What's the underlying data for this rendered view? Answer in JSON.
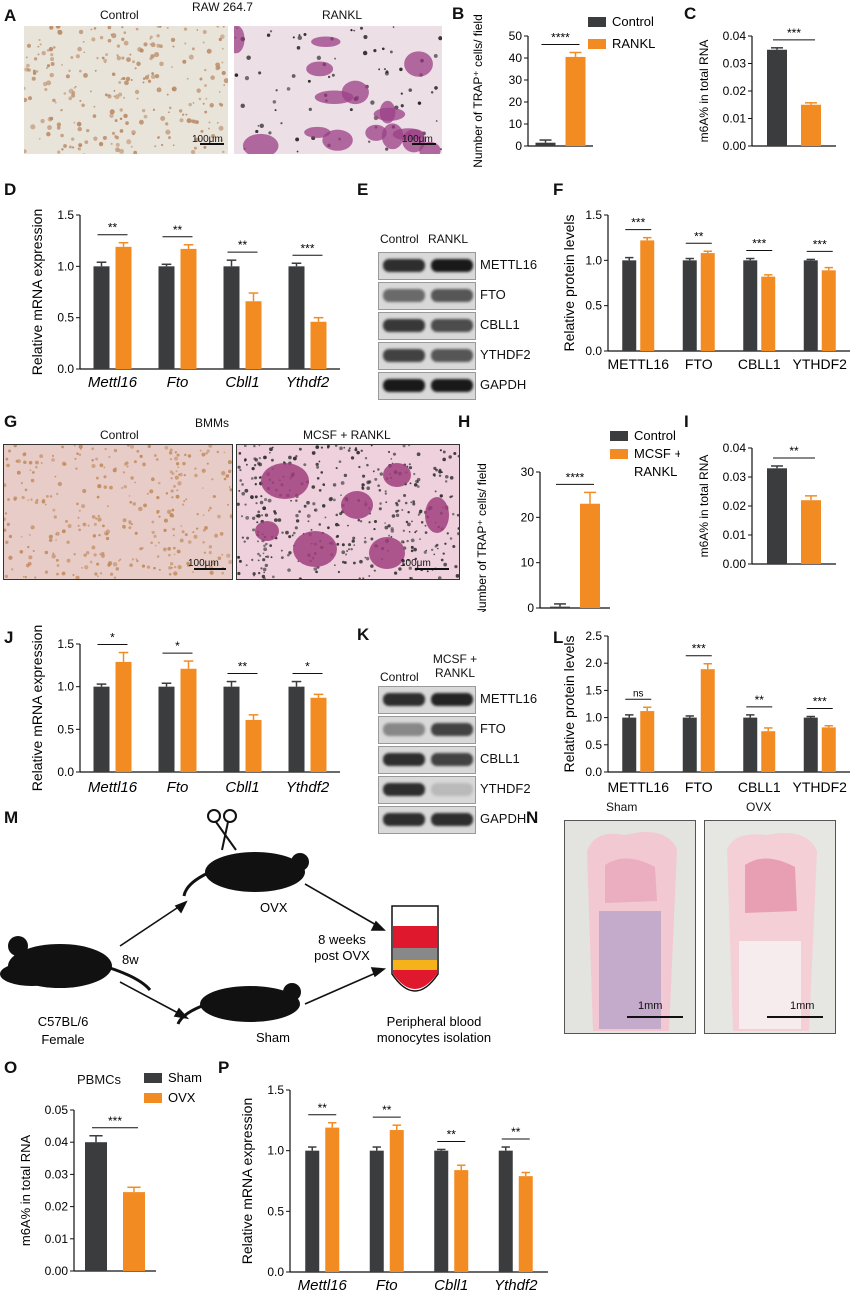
{
  "colors": {
    "control": "#3a3c3e",
    "treated": "#f28c22",
    "trap": "#b6589c"
  },
  "panel_letters": [
    "A",
    "B",
    "C",
    "D",
    "E",
    "F",
    "G",
    "H",
    "I",
    "J",
    "K",
    "L",
    "M",
    "N",
    "O",
    "P"
  ],
  "panelA": {
    "title": "RAW 264.7",
    "left_label": "Control",
    "right_label": "RANKL",
    "scale_left": "100μm",
    "scale_right": "100μm"
  },
  "panelE": {
    "lanes": [
      "Control",
      "RANKL"
    ],
    "bands": [
      "METTL16",
      "FTO",
      "CBLL1",
      "YTHDF2",
      "GAPDH"
    ]
  },
  "panelG": {
    "title": "BMMs",
    "left_label": "Control",
    "right_label": "MCSF + RANKL",
    "scale_left": "100μm",
    "scale_right": "100μm"
  },
  "panelK": {
    "lanes": [
      "Control",
      "MCSF + RANKL"
    ],
    "bands": [
      "METTL16",
      "FTO",
      "CBLL1",
      "YTHDF2",
      "GAPDH"
    ]
  },
  "panelM": {
    "mouse": "C57BL/6",
    "sex": "Female",
    "duration": "8w",
    "ovx": "OVX",
    "sham": "Sham",
    "post_line1": "8 weeks",
    "post_line2": "post OVX",
    "iso_line1": "Peripheral blood",
    "iso_line2": "monocytes isolation"
  },
  "panelN": {
    "left": "Sham",
    "right": "OVX",
    "scale_left": "1mm",
    "scale_right": "1mm"
  },
  "panelO": {
    "title": "PBMCs"
  },
  "chart_data": [
    {
      "id": "B",
      "type": "bar",
      "ylabel": "Number of TRAP⁺ cells/ field",
      "ylim": [
        0,
        50
      ],
      "yticks": [
        0,
        10,
        20,
        30,
        40,
        50
      ],
      "categories": [
        ""
      ],
      "series": [
        {
          "name": "Control",
          "values": [
            1.5
          ],
          "errors": [
            1.2
          ]
        },
        {
          "name": "RANKL",
          "values": [
            40.5
          ],
          "errors": [
            2
          ]
        }
      ],
      "sig": [
        {
          "label": "****"
        }
      ],
      "legend": [
        "Control",
        "RANKL"
      ]
    },
    {
      "id": "C",
      "type": "bar",
      "ylabel": "m6A%  in total RNA",
      "ylim": [
        0,
        0.04
      ],
      "yticks": [
        0.0,
        0.01,
        0.02,
        0.03,
        0.04
      ],
      "categories": [
        ""
      ],
      "series": [
        {
          "values": [
            0.035
          ],
          "errors": [
            0.0007
          ]
        },
        {
          "values": [
            0.015
          ],
          "errors": [
            0.0007
          ]
        }
      ],
      "sig": [
        {
          "label": "***"
        }
      ]
    },
    {
      "id": "D",
      "type": "bar",
      "ylabel": "Relative mRNA expression",
      "ylim": [
        0,
        1.5
      ],
      "yticks": [
        0.0,
        0.5,
        1.0,
        1.5
      ],
      "italic": true,
      "categories": [
        "Mettl16",
        "Fto",
        "Cbll1",
        "Ythdf2"
      ],
      "series": [
        {
          "values": [
            1.0,
            1.0,
            1.0,
            1.0
          ],
          "errors": [
            0.04,
            0.02,
            0.06,
            0.03
          ]
        },
        {
          "values": [
            1.19,
            1.17,
            0.66,
            0.46
          ],
          "errors": [
            0.04,
            0.04,
            0.08,
            0.04
          ]
        }
      ],
      "sig": [
        {
          "label": "**"
        },
        {
          "label": "**"
        },
        {
          "label": "**"
        },
        {
          "label": "***"
        }
      ]
    },
    {
      "id": "F",
      "type": "bar",
      "ylabel": "Relative protein levels",
      "ylim": [
        0,
        1.5
      ],
      "yticks": [
        0.0,
        0.5,
        1.0,
        1.5
      ],
      "categories": [
        "METTL16",
        "FTO",
        "CBLL1",
        "YTHDF2"
      ],
      "series": [
        {
          "values": [
            1.0,
            1.0,
            1.0,
            1.0
          ],
          "errors": [
            0.03,
            0.02,
            0.02,
            0.01
          ]
        },
        {
          "values": [
            1.22,
            1.08,
            0.82,
            0.89
          ],
          "errors": [
            0.03,
            0.02,
            0.02,
            0.03
          ]
        }
      ],
      "sig": [
        {
          "label": "***"
        },
        {
          "label": "**"
        },
        {
          "label": "***"
        },
        {
          "label": "***"
        }
      ]
    },
    {
      "id": "H",
      "type": "bar",
      "ylabel": "Number of TRAP⁺ cells/ field",
      "ylim": [
        0,
        30
      ],
      "yticks": [
        0,
        10,
        20,
        30
      ],
      "categories": [
        ""
      ],
      "series": [
        {
          "name": "Control",
          "values": [
            0.3
          ],
          "errors": [
            0.6
          ]
        },
        {
          "name": "MCSF + RANKL",
          "values": [
            23
          ],
          "errors": [
            2.5
          ]
        }
      ],
      "sig": [
        {
          "label": "****"
        }
      ],
      "legend": [
        "Control",
        "MCSF +",
        "RANKL"
      ]
    },
    {
      "id": "I",
      "type": "bar",
      "ylabel": "m6A%  in total RNA",
      "ylim": [
        0,
        0.04
      ],
      "yticks": [
        0.0,
        0.01,
        0.02,
        0.03,
        0.04
      ],
      "categories": [
        ""
      ],
      "series": [
        {
          "values": [
            0.033
          ],
          "errors": [
            0.0008
          ]
        },
        {
          "values": [
            0.022
          ],
          "errors": [
            0.0015
          ]
        }
      ],
      "sig": [
        {
          "label": "**"
        }
      ]
    },
    {
      "id": "J",
      "type": "bar",
      "ylabel": "Relative mRNA expression",
      "ylim": [
        0,
        1.5
      ],
      "yticks": [
        0.0,
        0.5,
        1.0,
        1.5
      ],
      "italic": true,
      "categories": [
        "Mettl16",
        "Fto",
        "Cbll1",
        "Ythdf2"
      ],
      "series": [
        {
          "values": [
            1.0,
            1.0,
            1.0,
            1.0
          ],
          "errors": [
            0.03,
            0.04,
            0.06,
            0.06
          ]
        },
        {
          "values": [
            1.29,
            1.21,
            0.61,
            0.87
          ],
          "errors": [
            0.11,
            0.09,
            0.06,
            0.04
          ]
        }
      ],
      "sig": [
        {
          "label": "*"
        },
        {
          "label": "*"
        },
        {
          "label": "**"
        },
        {
          "label": "*"
        }
      ]
    },
    {
      "id": "L",
      "type": "bar",
      "ylabel": "Relative protein levels",
      "ylim": [
        0,
        2.5
      ],
      "yticks": [
        0.0,
        0.5,
        1.0,
        1.5,
        2.0,
        2.5
      ],
      "categories": [
        "METTL16",
        "FTO",
        "CBLL1",
        "YTHDF2"
      ],
      "series": [
        {
          "values": [
            1.0,
            1.0,
            1.0,
            1.0
          ],
          "errors": [
            0.05,
            0.03,
            0.05,
            0.02
          ]
        },
        {
          "values": [
            1.12,
            1.89,
            0.75,
            0.82
          ],
          "errors": [
            0.07,
            0.1,
            0.06,
            0.03
          ]
        }
      ],
      "sig": [
        {
          "label": "ns"
        },
        {
          "label": "***"
        },
        {
          "label": "**"
        },
        {
          "label": "***"
        }
      ]
    },
    {
      "id": "O",
      "type": "bar",
      "ylabel": "m6A%  in total RNA",
      "ylim": [
        0,
        0.05
      ],
      "yticks": [
        0.0,
        0.01,
        0.02,
        0.03,
        0.04,
        0.05
      ],
      "categories": [
        ""
      ],
      "series": [
        {
          "name": "Sham",
          "values": [
            0.04
          ],
          "errors": [
            0.002
          ]
        },
        {
          "name": "OVX",
          "values": [
            0.0245
          ],
          "errors": [
            0.0015
          ]
        }
      ],
      "sig": [
        {
          "label": "***"
        }
      ],
      "legend": [
        "Sham",
        "OVX"
      ]
    },
    {
      "id": "P",
      "type": "bar",
      "ylabel": "Relative mRNA expression",
      "ylim": [
        0,
        1.5
      ],
      "yticks": [
        0.0,
        0.5,
        1.0,
        1.5
      ],
      "italic": true,
      "categories": [
        "Mettl16",
        "Fto",
        "Cbll1",
        "Ythdf2"
      ],
      "series": [
        {
          "values": [
            1.0,
            1.0,
            1.0,
            1.0
          ],
          "errors": [
            0.03,
            0.03,
            0.01,
            0.03
          ]
        },
        {
          "values": [
            1.19,
            1.17,
            0.84,
            0.79
          ],
          "errors": [
            0.04,
            0.04,
            0.04,
            0.03
          ]
        }
      ],
      "sig": [
        {
          "label": "**"
        },
        {
          "label": "**"
        },
        {
          "label": "**"
        },
        {
          "label": "**"
        }
      ]
    }
  ]
}
